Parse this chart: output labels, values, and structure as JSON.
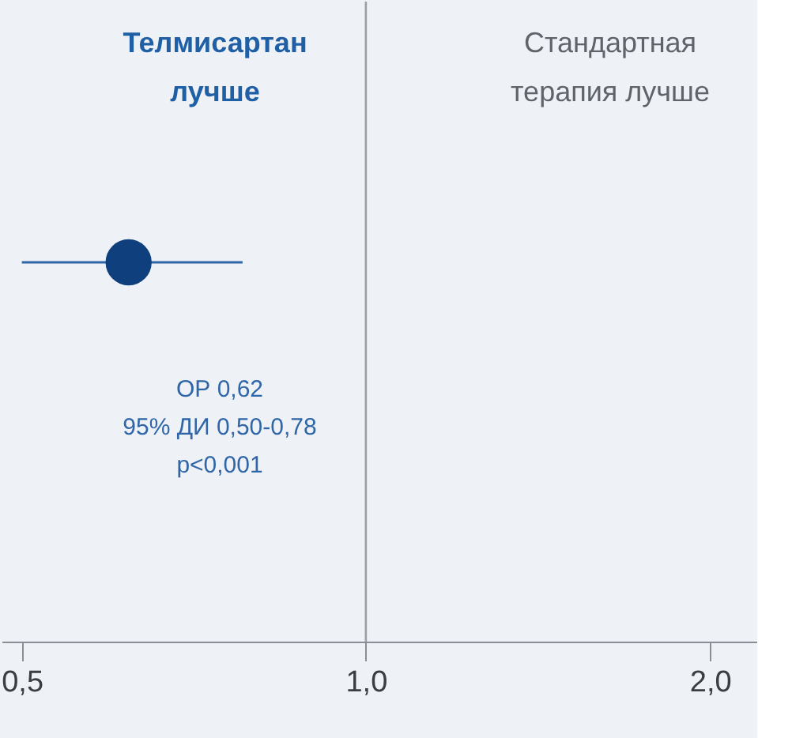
{
  "chart_data": {
    "type": "scatter",
    "orientation": "horizontal",
    "categories": [
      null
    ],
    "values": [
      0.62
    ],
    "errors": [
      [
        0.5,
        0.78
      ]
    ],
    "color": "#0f3f7d",
    "log": "x",
    "xlim": [
      0.48,
      2.2
    ],
    "xticks": [
      {
        "value": 0.5,
        "label": "0,5"
      },
      {
        "value": 1.0,
        "label": "1,0"
      },
      {
        "value": 2.0,
        "label": "2,0"
      }
    ],
    "ref_lines": [
      {
        "axis": "x",
        "value": 1.0,
        "color": "#9a9ea6"
      }
    ],
    "annotations": [
      "Телмисартан\nлучше",
      "Стандартная\nтерапия лучше",
      "ОР 0,62\n95% ДИ 0,50-0,78\np<0,001"
    ],
    "grid": false,
    "marker": "circle"
  }
}
